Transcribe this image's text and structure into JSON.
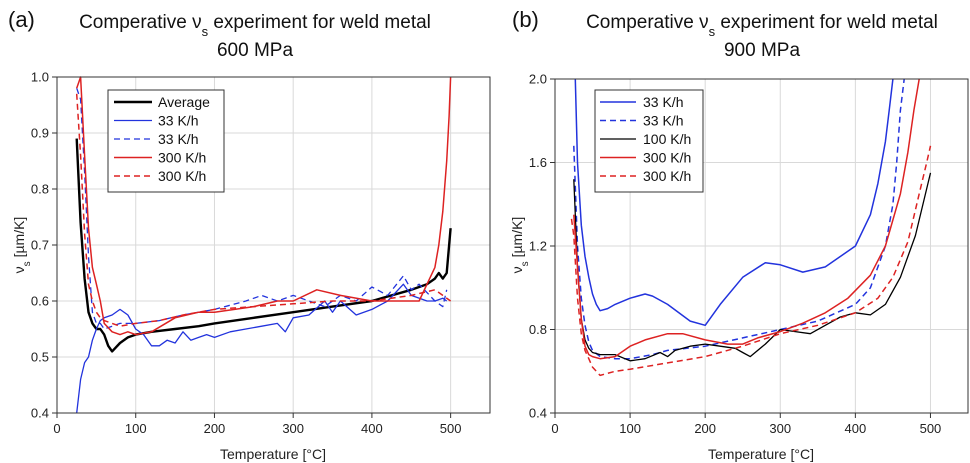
{
  "chart_data": [
    {
      "type": "line",
      "panel": "(a)",
      "title_line1_pre": "Comperative ",
      "title_sym": "ν",
      "title_sub": "s",
      "title_line1_post": " experiment for weld metal",
      "title_line2": "600 MPa",
      "xlabel": "Temperature [°C]",
      "ylabel_sym": "ν",
      "ylabel_sub": "s",
      "ylabel_unit": " [µm/K]",
      "xlim": [
        0,
        550
      ],
      "ylim": [
        0.4,
        1.0
      ],
      "xticks": [
        "0",
        "100",
        "200",
        "300",
        "400",
        "500"
      ],
      "xtick_values": [
        0,
        100,
        200,
        300,
        400,
        500
      ],
      "yticks": [
        "0.4",
        "0.5",
        "0.6",
        "0.7",
        "0.8",
        "0.9",
        "1.0"
      ],
      "ytick_values": [
        0.4,
        0.5,
        0.6,
        0.7,
        0.8,
        0.9,
        1.0
      ],
      "grid": true,
      "legend_position": "top-left",
      "series": [
        {
          "name": "Average",
          "color": "#000000",
          "dash": "solid",
          "width": 2.4,
          "x": [
            25,
            30,
            35,
            40,
            45,
            50,
            55,
            60,
            65,
            70,
            80,
            90,
            100,
            120,
            150,
            180,
            200,
            250,
            300,
            350,
            400,
            450,
            470,
            480,
            485,
            490,
            495,
            500
          ],
          "y": [
            0.89,
            0.74,
            0.64,
            0.58,
            0.56,
            0.55,
            0.55,
            0.54,
            0.52,
            0.51,
            0.525,
            0.535,
            0.54,
            0.545,
            0.55,
            0.555,
            0.56,
            0.57,
            0.58,
            0.59,
            0.6,
            0.62,
            0.63,
            0.64,
            0.65,
            0.64,
            0.65,
            0.73
          ]
        },
        {
          "name": "33 K/h",
          "color": "#2233dd",
          "dash": "solid",
          "width": 1.3,
          "x": [
            25,
            30,
            35,
            40,
            45,
            50,
            55,
            60,
            70,
            80,
            90,
            100,
            110,
            120,
            130,
            140,
            150,
            160,
            170,
            180,
            190,
            200,
            220,
            240,
            260,
            280,
            290,
            300,
            320,
            340,
            350,
            360,
            380,
            400,
            420,
            440,
            450,
            470,
            480,
            490,
            495
          ],
          "y": [
            0.4,
            0.46,
            0.49,
            0.5,
            0.53,
            0.55,
            0.565,
            0.57,
            0.575,
            0.585,
            0.575,
            0.55,
            0.54,
            0.52,
            0.52,
            0.53,
            0.525,
            0.545,
            0.53,
            0.535,
            0.54,
            0.535,
            0.545,
            0.55,
            0.555,
            0.56,
            0.545,
            0.57,
            0.575,
            0.6,
            0.58,
            0.6,
            0.575,
            0.585,
            0.6,
            0.63,
            0.61,
            0.6,
            0.6,
            0.605,
            0.6
          ]
        },
        {
          "name": "33 K/h",
          "color": "#2233dd",
          "dash": "dashed",
          "width": 1.3,
          "x": [
            25,
            30,
            35,
            40,
            45,
            50,
            55,
            60,
            70,
            80,
            100,
            130,
            160,
            200,
            240,
            260,
            280,
            300,
            320,
            340,
            360,
            380,
            400,
            420,
            440,
            450,
            460,
            480,
            490,
            495
          ],
          "y": [
            0.98,
            0.96,
            0.83,
            0.68,
            0.58,
            0.56,
            0.56,
            0.55,
            0.555,
            0.56,
            0.56,
            0.565,
            0.575,
            0.585,
            0.6,
            0.61,
            0.6,
            0.61,
            0.6,
            0.59,
            0.61,
            0.6,
            0.625,
            0.61,
            0.645,
            0.62,
            0.63,
            0.6,
            0.59,
            0.62
          ]
        },
        {
          "name": "300 K/h",
          "color": "#dd2222",
          "dash": "solid",
          "width": 1.5,
          "x": [
            25,
            30,
            35,
            40,
            45,
            50,
            55,
            60,
            70,
            80,
            90,
            100,
            120,
            150,
            180,
            200,
            250,
            280,
            300,
            330,
            360,
            400,
            440,
            460,
            470,
            480,
            485,
            490,
            495,
            498,
            500
          ],
          "y": [
            0.98,
            1.0,
            0.86,
            0.73,
            0.66,
            0.63,
            0.6,
            0.56,
            0.545,
            0.54,
            0.545,
            0.54,
            0.545,
            0.57,
            0.58,
            0.58,
            0.59,
            0.6,
            0.6,
            0.62,
            0.61,
            0.6,
            0.6,
            0.6,
            0.63,
            0.66,
            0.7,
            0.76,
            0.85,
            0.93,
            1.0
          ]
        },
        {
          "name": "300 K/h",
          "color": "#dd2222",
          "dash": "dashed",
          "width": 1.5,
          "x": [
            25,
            30,
            35,
            40,
            45,
            50,
            55,
            60,
            70,
            80,
            100,
            130,
            160,
            200,
            250,
            300,
            350,
            400,
            450,
            480,
            490,
            500
          ],
          "y": [
            0.97,
            0.86,
            0.72,
            0.63,
            0.6,
            0.58,
            0.57,
            0.565,
            0.56,
            0.555,
            0.56,
            0.565,
            0.575,
            0.585,
            0.59,
            0.595,
            0.6,
            0.6,
            0.61,
            0.62,
            0.61,
            0.6
          ]
        }
      ]
    },
    {
      "type": "line",
      "panel": "(b)",
      "title_line1_pre": "Comperative ",
      "title_sym": "ν",
      "title_sub": "s",
      "title_line1_post": " experiment for weld metal",
      "title_line2": "900 MPa",
      "xlabel": "Temperature [°C]",
      "ylabel_sym": "ν",
      "ylabel_sub": "s",
      "ylabel_unit": " [µm/K]",
      "xlim": [
        0,
        550
      ],
      "ylim": [
        0.4,
        2.0
      ],
      "xticks": [
        "0",
        "100",
        "200",
        "300",
        "400",
        "500"
      ],
      "xtick_values": [
        0,
        100,
        200,
        300,
        400,
        500
      ],
      "yticks": [
        "0.4",
        "0.8",
        "1.2",
        "1.6",
        "2.0"
      ],
      "ytick_values": [
        0.4,
        0.8,
        1.2,
        1.6,
        2.0
      ],
      "grid": true,
      "legend_position": "top-left",
      "series": [
        {
          "name": "33 K/h",
          "color": "#2233dd",
          "dash": "solid",
          "width": 1.5,
          "x": [
            27,
            30,
            35,
            40,
            45,
            50,
            55,
            60,
            70,
            80,
            100,
            120,
            130,
            150,
            180,
            200,
            220,
            250,
            280,
            300,
            330,
            360,
            400,
            420,
            430,
            440,
            445,
            450
          ],
          "y": [
            2.0,
            1.6,
            1.3,
            1.15,
            1.05,
            0.97,
            0.92,
            0.89,
            0.9,
            0.92,
            0.95,
            0.97,
            0.96,
            0.92,
            0.84,
            0.82,
            0.92,
            1.05,
            1.12,
            1.11,
            1.075,
            1.1,
            1.2,
            1.35,
            1.5,
            1.7,
            1.85,
            2.0
          ]
        },
        {
          "name": "33 K/h",
          "color": "#2233dd",
          "dash": "dashed",
          "width": 1.5,
          "x": [
            25,
            30,
            35,
            40,
            45,
            50,
            60,
            80,
            100,
            130,
            150,
            200,
            250,
            300,
            350,
            400,
            420,
            440,
            450,
            455,
            460,
            465
          ],
          "y": [
            1.68,
            1.2,
            0.95,
            0.82,
            0.74,
            0.7,
            0.67,
            0.66,
            0.66,
            0.68,
            0.7,
            0.72,
            0.76,
            0.8,
            0.84,
            0.92,
            1.0,
            1.2,
            1.4,
            1.6,
            1.85,
            2.0
          ]
        },
        {
          "name": "100 K/h",
          "color": "#000000",
          "dash": "solid",
          "width": 1.3,
          "x": [
            25,
            30,
            35,
            40,
            45,
            50,
            60,
            80,
            100,
            120,
            140,
            150,
            160,
            180,
            200,
            220,
            240,
            250,
            260,
            280,
            300,
            320,
            340,
            360,
            380,
            400,
            420,
            440,
            460,
            480,
            500
          ],
          "y": [
            1.52,
            1.1,
            0.85,
            0.75,
            0.71,
            0.69,
            0.68,
            0.68,
            0.65,
            0.66,
            0.69,
            0.67,
            0.7,
            0.72,
            0.73,
            0.72,
            0.71,
            0.69,
            0.67,
            0.73,
            0.8,
            0.79,
            0.78,
            0.82,
            0.86,
            0.88,
            0.87,
            0.92,
            1.05,
            1.25,
            1.55
          ]
        },
        {
          "name": "300 K/h",
          "color": "#dd2222",
          "dash": "solid",
          "width": 1.5,
          "x": [
            25,
            30,
            35,
            40,
            45,
            50,
            60,
            80,
            100,
            120,
            150,
            170,
            200,
            230,
            250,
            270,
            300,
            330,
            360,
            390,
            420,
            440,
            460,
            470,
            478,
            485
          ],
          "y": [
            1.35,
            1.1,
            0.85,
            0.72,
            0.68,
            0.67,
            0.66,
            0.67,
            0.72,
            0.75,
            0.78,
            0.78,
            0.75,
            0.73,
            0.73,
            0.76,
            0.79,
            0.83,
            0.88,
            0.95,
            1.06,
            1.2,
            1.45,
            1.65,
            1.85,
            2.0
          ]
        },
        {
          "name": "300 K/h",
          "color": "#dd2222",
          "dash": "dashed",
          "width": 1.5,
          "x": [
            22,
            25,
            30,
            35,
            40,
            45,
            50,
            60,
            80,
            100,
            150,
            200,
            250,
            300,
            350,
            400,
            430,
            450,
            470,
            485,
            495,
            500
          ],
          "y": [
            1.33,
            1.25,
            0.95,
            0.78,
            0.7,
            0.66,
            0.62,
            0.58,
            0.6,
            0.61,
            0.64,
            0.67,
            0.72,
            0.78,
            0.82,
            0.88,
            0.95,
            1.05,
            1.22,
            1.45,
            1.6,
            1.68
          ]
        }
      ]
    }
  ]
}
